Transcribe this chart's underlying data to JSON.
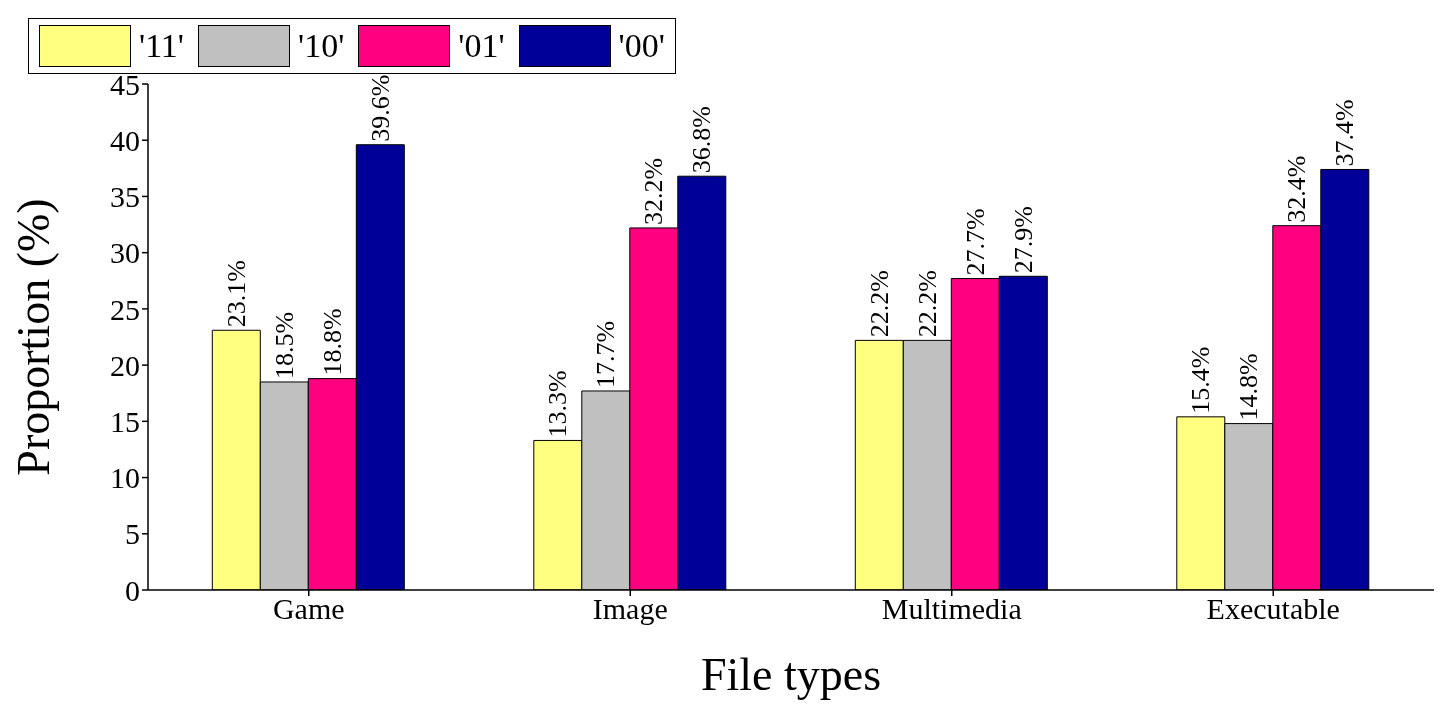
{
  "chart_data": {
    "type": "bar",
    "xlabel": "File types",
    "ylabel": "Proportion (%)",
    "categories": [
      "Game",
      "Image",
      "Multimedia",
      "Executable"
    ],
    "series": [
      {
        "name": "'11'",
        "color": "#ffff80",
        "values": [
          23.1,
          13.3,
          22.2,
          15.4
        ],
        "value_labels": [
          "23.1%",
          "13.3%",
          "22.2%",
          "15.4%"
        ]
      },
      {
        "name": "'10'",
        "color": "#c0c0c0",
        "values": [
          18.5,
          17.7,
          22.2,
          14.8
        ],
        "value_labels": [
          "18.5%",
          "17.7%",
          "22.2%",
          "14.8%"
        ]
      },
      {
        "name": "'01'",
        "color": "#ff0080",
        "values": [
          18.8,
          32.2,
          27.7,
          32.4
        ],
        "value_labels": [
          "18.8%",
          "32.2%",
          "27.7%",
          "32.4%"
        ]
      },
      {
        "name": "'00'",
        "color": "#000099",
        "values": [
          39.6,
          36.8,
          27.9,
          37.4
        ],
        "value_labels": [
          "39.6%",
          "36.8%",
          "27.9%",
          "37.4%"
        ]
      }
    ],
    "ylim": [
      0,
      45
    ],
    "yticks": [
      0,
      5,
      10,
      15,
      20,
      25,
      30,
      35,
      40,
      45
    ],
    "grid": false,
    "legend": "top"
  }
}
